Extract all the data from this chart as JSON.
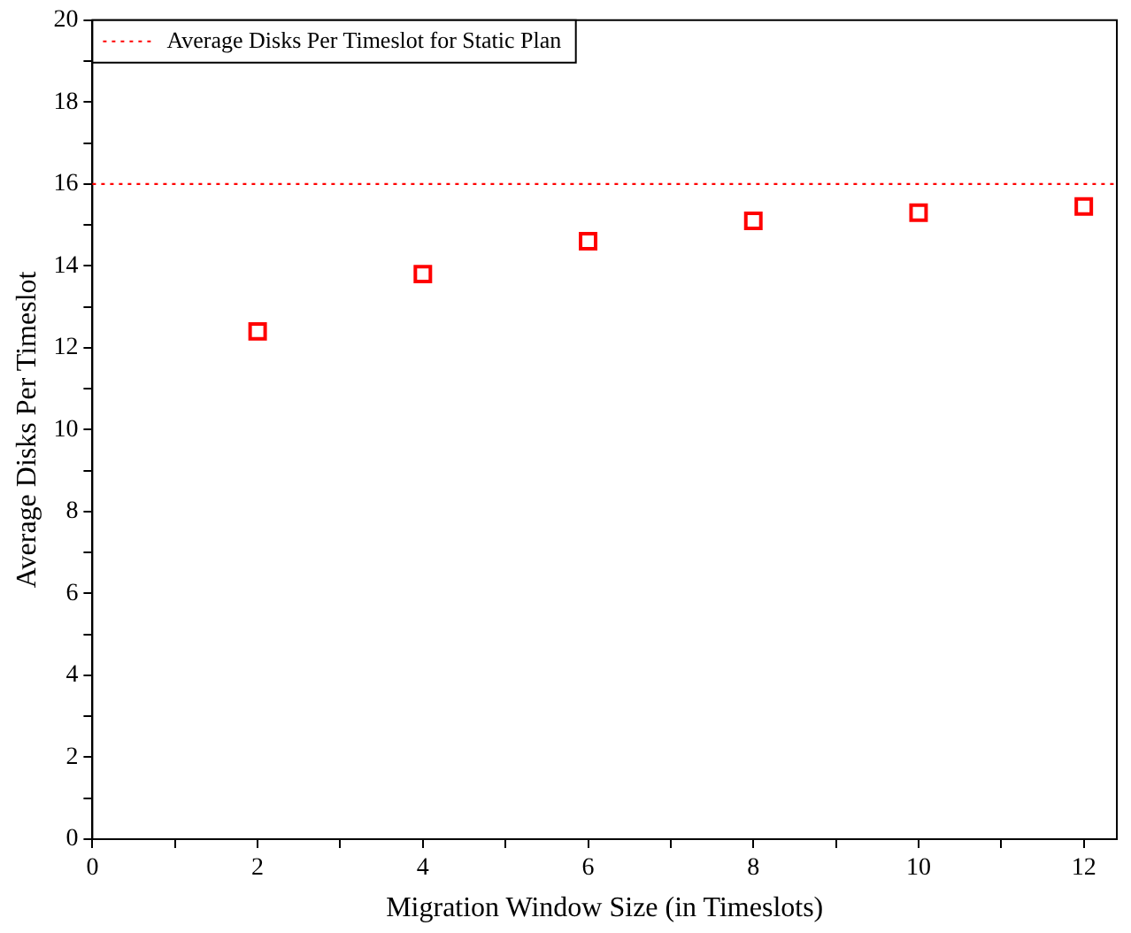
{
  "chart_data": {
    "type": "scatter",
    "xlabel": "Migration Window Size (in Timeslots)",
    "ylabel": "Average Disks Per Timeslot",
    "x": [
      2,
      4,
      6,
      8,
      10,
      12
    ],
    "series": [
      {
        "color": "#ff0000",
        "values": [
          12.4,
          13.8,
          14.6,
          15.1,
          15.3,
          15.45
        ]
      }
    ],
    "xlim": [
      0,
      12.4
    ],
    "xticks": [
      0,
      {
        "value": 1,
        "label": null
      },
      2,
      {
        "value": 3,
        "label": null
      },
      4,
      {
        "value": 5,
        "label": null
      },
      6,
      {
        "value": 7,
        "label": null
      },
      8,
      {
        "value": 9,
        "label": null
      },
      10,
      {
        "value": 11,
        "label": null
      },
      12
    ],
    "ylim": [
      0,
      20
    ],
    "yticks": [
      0,
      {
        "value": 1,
        "label": null
      },
      2,
      {
        "value": 3,
        "label": null
      },
      4,
      {
        "value": 5,
        "label": null
      },
      6,
      {
        "value": 7,
        "label": null
      },
      8,
      {
        "value": 9,
        "label": null
      },
      10,
      {
        "value": 11,
        "label": null
      },
      12,
      {
        "value": 13,
        "label": null
      },
      14,
      {
        "value": 15,
        "label": null
      },
      16,
      {
        "value": 17,
        "label": null
      },
      18,
      {
        "value": 19,
        "label": null
      },
      20
    ],
    "ref_lines": [
      {
        "axis": "y",
        "value": 16,
        "label": "Average Disks Per Timeslot for Static Plan",
        "color": "#ff0000",
        "line_style": "dotted"
      }
    ],
    "marker": "square",
    "grid": false,
    "legend": "top left"
  }
}
